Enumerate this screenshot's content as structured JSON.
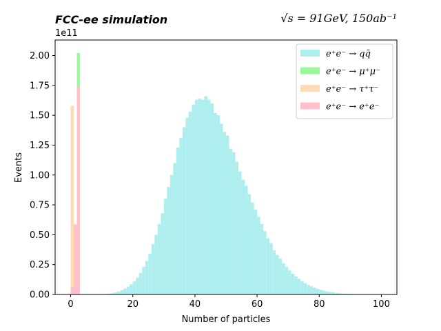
{
  "chart_data": {
    "type": "bar",
    "title_left": "FCC-ee simulation",
    "title_right": "√s = 91GeV, 150ab⁻¹",
    "xlabel": "Number of particles",
    "ylabel": "Events",
    "y_offset_label": "1e11",
    "xlim": [
      -5,
      105
    ],
    "ylim": [
      0,
      2.13
    ],
    "y_unit_scale": "1e11",
    "x_ticks": [
      0,
      20,
      40,
      60,
      80,
      100
    ],
    "x_tick_labels": [
      "0",
      "20",
      "40",
      "60",
      "80",
      "100"
    ],
    "y_ticks": [
      0,
      0.25,
      0.5,
      0.75,
      1.0,
      1.25,
      1.5,
      1.75,
      2.0
    ],
    "y_tick_labels": [
      "0.00",
      "0.25",
      "0.50",
      "0.75",
      "1.00",
      "1.25",
      "1.50",
      "1.75",
      "2.00"
    ],
    "bin_width": 1,
    "legend_position": "top-right",
    "grid": false,
    "stacked": true,
    "series": [
      {
        "name": "e⁺e⁻ → qq̄",
        "color": "#afeeee",
        "bins": [
          [
            10,
            0.002
          ],
          [
            11,
            0.004
          ],
          [
            12,
            0.007
          ],
          [
            13,
            0.011
          ],
          [
            14,
            0.017
          ],
          [
            15,
            0.025
          ],
          [
            16,
            0.036
          ],
          [
            17,
            0.05
          ],
          [
            18,
            0.066
          ],
          [
            19,
            0.085
          ],
          [
            20,
            0.108
          ],
          [
            21,
            0.14
          ],
          [
            22,
            0.18
          ],
          [
            23,
            0.23
          ],
          [
            24,
            0.28
          ],
          [
            25,
            0.34
          ],
          [
            26,
            0.42
          ],
          [
            27,
            0.5
          ],
          [
            28,
            0.59
          ],
          [
            29,
            0.68
          ],
          [
            30,
            0.8
          ],
          [
            31,
            0.9
          ],
          [
            32,
            1.0
          ],
          [
            33,
            1.1
          ],
          [
            34,
            1.23
          ],
          [
            35,
            1.31
          ],
          [
            36,
            1.4
          ],
          [
            37,
            1.48
          ],
          [
            38,
            1.53
          ],
          [
            39,
            1.59
          ],
          [
            40,
            1.63
          ],
          [
            41,
            1.64
          ],
          [
            42,
            1.63
          ],
          [
            43,
            1.66
          ],
          [
            44,
            1.63
          ],
          [
            45,
            1.6
          ],
          [
            46,
            1.52
          ],
          [
            47,
            1.5
          ],
          [
            48,
            1.43
          ],
          [
            49,
            1.36
          ],
          [
            50,
            1.33
          ],
          [
            51,
            1.22
          ],
          [
            52,
            1.19
          ],
          [
            53,
            1.11
          ],
          [
            54,
            1.03
          ],
          [
            55,
            0.96
          ],
          [
            56,
            0.91
          ],
          [
            57,
            0.84
          ],
          [
            58,
            0.77
          ],
          [
            59,
            0.71
          ],
          [
            60,
            0.65
          ],
          [
            61,
            0.59
          ],
          [
            62,
            0.53
          ],
          [
            63,
            0.47
          ],
          [
            64,
            0.43
          ],
          [
            65,
            0.37
          ],
          [
            66,
            0.33
          ],
          [
            67,
            0.3
          ],
          [
            68,
            0.26
          ],
          [
            69,
            0.23
          ],
          [
            70,
            0.2
          ],
          [
            71,
            0.175
          ],
          [
            72,
            0.15
          ],
          [
            73,
            0.13
          ],
          [
            74,
            0.11
          ],
          [
            75,
            0.095
          ],
          [
            76,
            0.08
          ],
          [
            77,
            0.068
          ],
          [
            78,
            0.057
          ],
          [
            79,
            0.047
          ],
          [
            80,
            0.039
          ],
          [
            81,
            0.032
          ],
          [
            82,
            0.026
          ],
          [
            83,
            0.021
          ],
          [
            84,
            0.017
          ],
          [
            85,
            0.013
          ],
          [
            86,
            0.01
          ],
          [
            87,
            0.008
          ],
          [
            88,
            0.006
          ],
          [
            89,
            0.005
          ],
          [
            90,
            0.004
          ],
          [
            91,
            0.003
          ],
          [
            92,
            0.002
          ],
          [
            93,
            0.0015
          ],
          [
            94,
            0.001
          ],
          [
            95,
            0.0008
          ],
          [
            96,
            0.0005
          ],
          [
            97,
            0.0003
          ],
          [
            98,
            0.0002
          ],
          [
            99,
            0.0001
          ]
        ]
      },
      {
        "name": "e⁺e⁻ → μ⁺μ⁻",
        "color": "#98fb98",
        "bins": [
          [
            2,
            2.02
          ]
        ]
      },
      {
        "name": "e⁺e⁻ → τ⁺τ⁻",
        "color": "#ffdab9",
        "bins": [
          [
            0,
            1.58
          ],
          [
            1,
            0.59
          ]
        ]
      },
      {
        "name": "e⁺e⁻ → e⁺e⁻",
        "color": "#ffc0cb",
        "bins": [
          [
            0,
            0.06
          ],
          [
            1,
            0.58
          ],
          [
            2,
            1.74
          ]
        ]
      }
    ]
  },
  "legend": {
    "entries": [
      {
        "label": "e⁺e⁻ → qq̄",
        "color": "#afeeee"
      },
      {
        "label": "e⁺e⁻ → μ⁺μ⁻",
        "color": "#98fb98"
      },
      {
        "label": "e⁺e⁻ → τ⁺τ⁻",
        "color": "#ffdab9"
      },
      {
        "label": "e⁺e⁻ → e⁺e⁻",
        "color": "#ffc0cb"
      }
    ]
  }
}
